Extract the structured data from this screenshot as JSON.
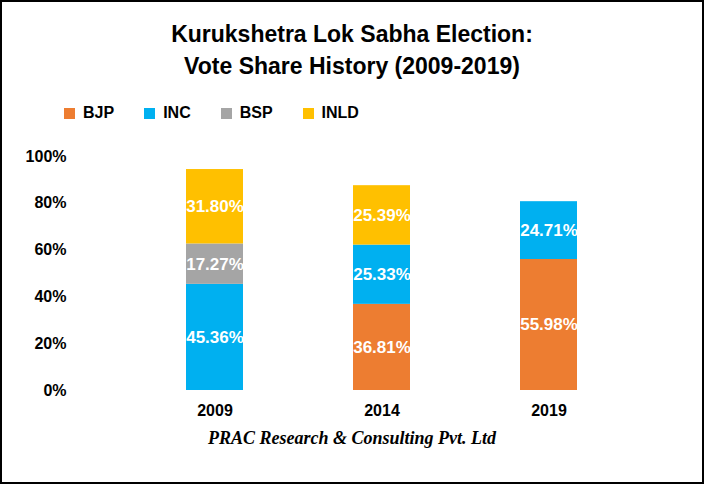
{
  "chart_data": {
    "type": "bar",
    "stacked": true,
    "title": "Kurukshetra Lok Sabha Election:\nVote Share History (2009-2019)",
    "caption": "PRAC Research & Consulting Pvt. Ltd",
    "categories": [
      "2009",
      "2014",
      "2019"
    ],
    "series": [
      {
        "name": "BJP",
        "color": "#ed7d31",
        "values": [
          null,
          36.81,
          55.98
        ],
        "value_labels": [
          null,
          "36.81%",
          "55.98%"
        ]
      },
      {
        "name": "INC",
        "color": "#00b0f0",
        "values": [
          45.36,
          25.33,
          24.71
        ],
        "value_labels": [
          "45.36%",
          "25.33%",
          "24.71%"
        ]
      },
      {
        "name": "BSP",
        "color": "#a5a5a5",
        "values": [
          17.27,
          null,
          null
        ],
        "value_labels": [
          "17.27%",
          null,
          null
        ]
      },
      {
        "name": "INLD",
        "color": "#ffc000",
        "values": [
          31.8,
          25.39,
          null
        ],
        "value_labels": [
          "31.80%",
          "25.39%",
          null
        ]
      }
    ],
    "ylim": [
      0,
      100
    ],
    "yticks": [
      {
        "value": 0,
        "label": "0%"
      },
      {
        "value": 20,
        "label": "20%"
      },
      {
        "value": 40,
        "label": "40%"
      },
      {
        "value": 60,
        "label": "60%"
      },
      {
        "value": 80,
        "label": "80%"
      },
      {
        "value": 100,
        "label": "100%"
      }
    ],
    "grid": false,
    "legend": "top-left",
    "data_labels": true
  }
}
